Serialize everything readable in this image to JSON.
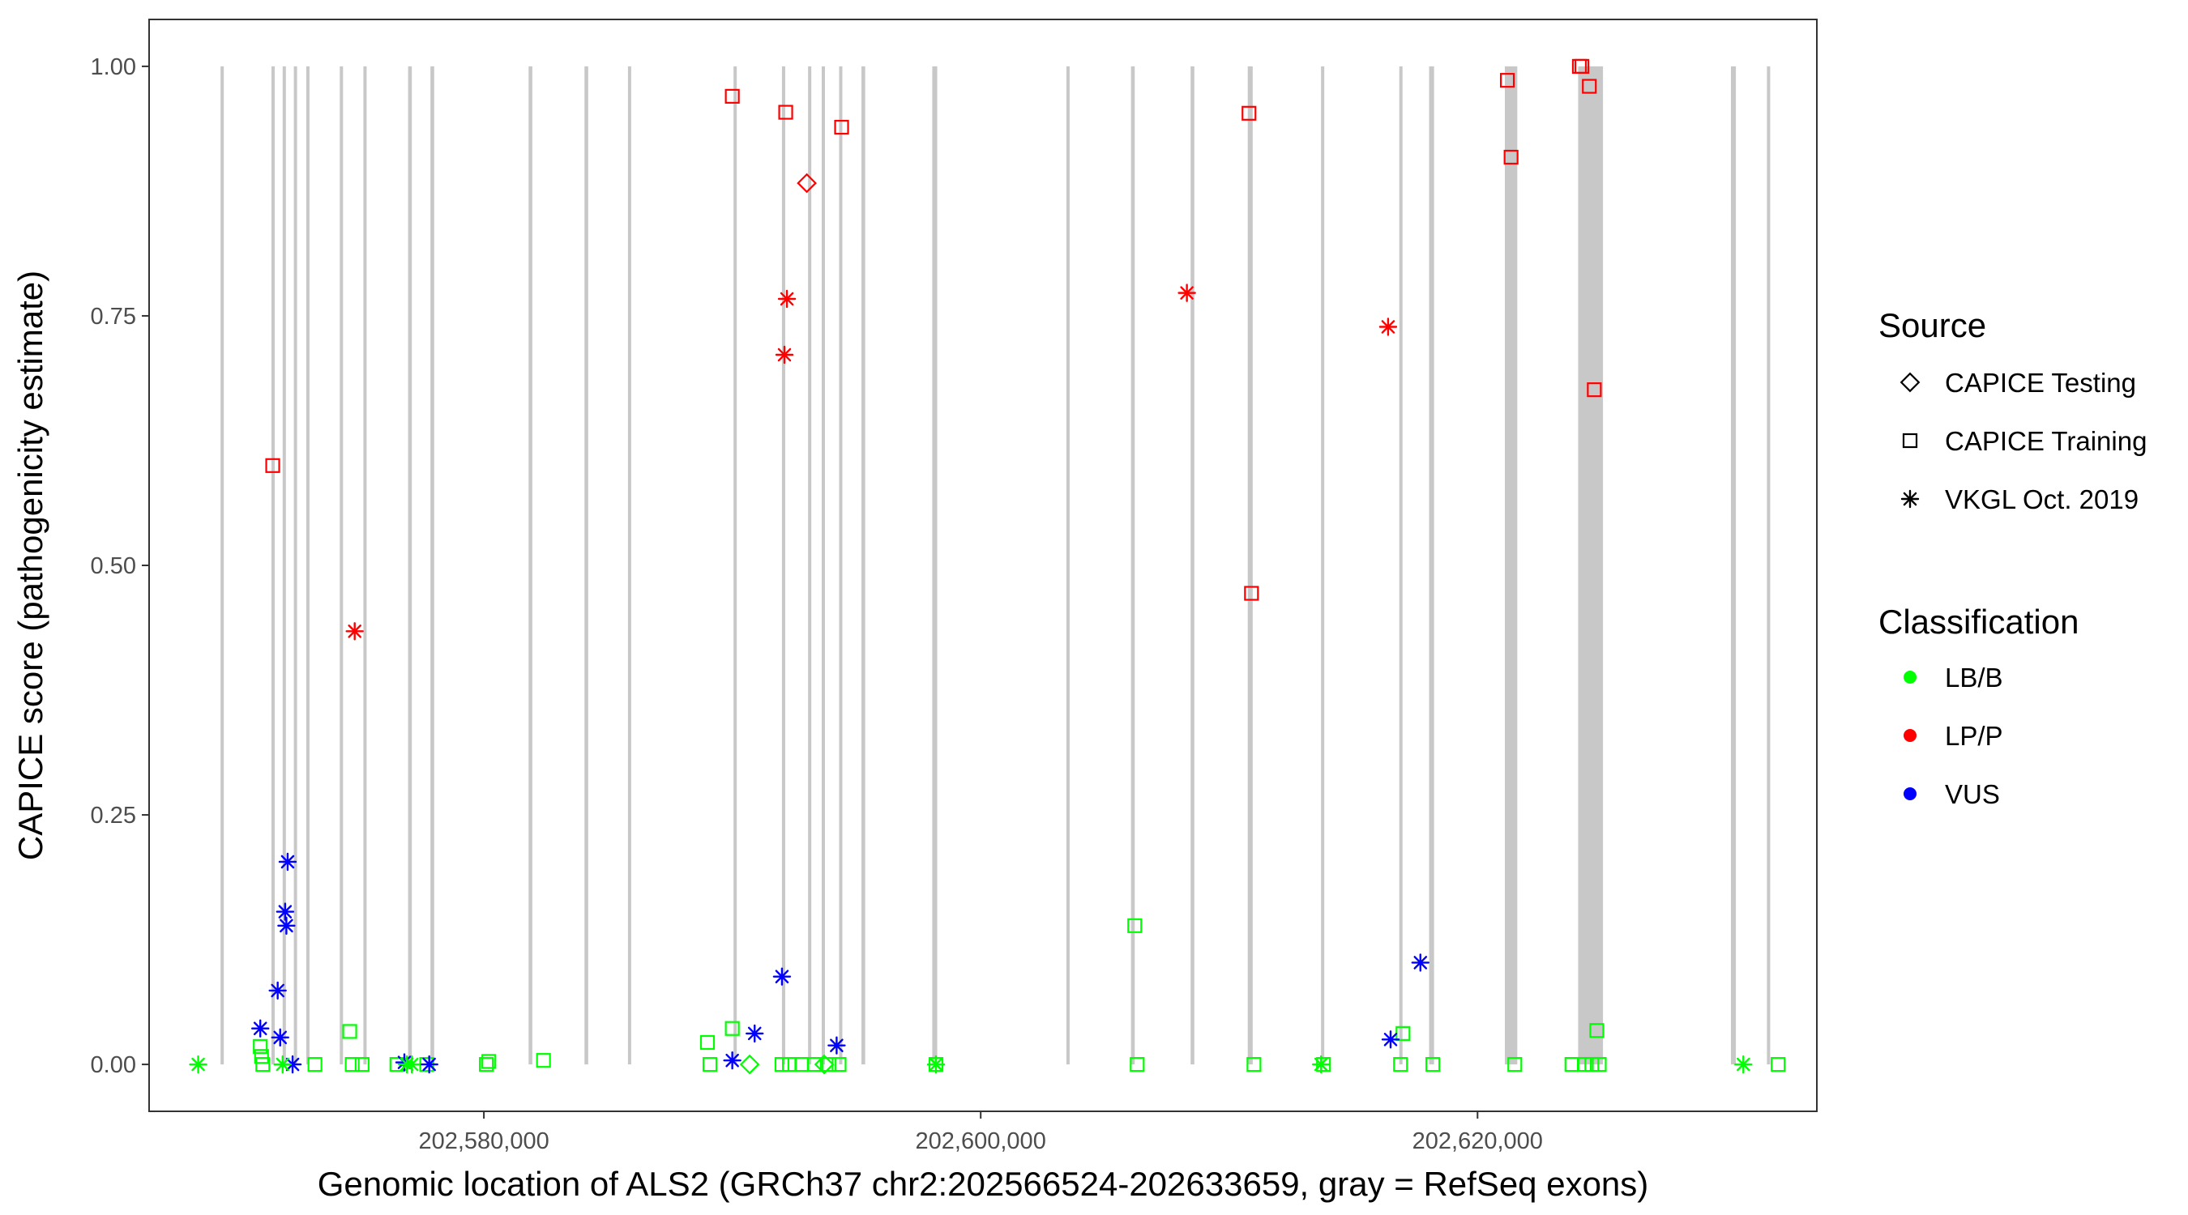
{
  "chart_data": {
    "type": "scatter",
    "xlabel": "Genomic location of ALS2 (GRCh37 chr2:202566524-202633659, gray = RefSeq exons)",
    "ylabel": "CAPICE score (pathogenicity estimate)",
    "xlim": [
      202566524,
      202633659
    ],
    "ylim": [
      -0.047,
      1.047
    ],
    "x_ticks": [
      202580000,
      202600000,
      202620000
    ],
    "x_tick_labels": [
      "202,580,000",
      "202,600,000",
      "202,620,000"
    ],
    "y_ticks": [
      0,
      0.25,
      0.5,
      0.75,
      1.0
    ],
    "y_tick_labels": [
      "0.00",
      "0.25",
      "0.50",
      "0.75",
      "1.00"
    ],
    "grid": false,
    "legend_position": "right",
    "legends": [
      {
        "title": "Source",
        "entries": [
          {
            "label": "CAPICE Testing",
            "shape": "diamond"
          },
          {
            "label": "CAPICE Training",
            "shape": "square"
          },
          {
            "label": "VKGL Oct. 2019",
            "shape": "asterisk"
          }
        ]
      },
      {
        "title": "Classification",
        "entries": [
          {
            "label": "LB/B",
            "color": "#00ff00"
          },
          {
            "label": "LP/P",
            "color": "#ff0000"
          },
          {
            "label": "VUS",
            "color": "#0000ff"
          }
        ]
      }
    ],
    "colors": {
      "LB/B": "#00ff00",
      "LP/P": "#ff0000",
      "VUS": "#0000ff",
      "exon": "#c8c8c8"
    },
    "exons": [
      [
        202569400,
        202569460
      ],
      [
        202571450,
        202571550
      ],
      [
        202571900,
        202572000
      ],
      [
        202572350,
        202572450
      ],
      [
        202572850,
        202572950
      ],
      [
        202574200,
        202574320
      ],
      [
        202575150,
        202575250
      ],
      [
        202576950,
        202577100
      ],
      [
        202577850,
        202578000
      ],
      [
        202581800,
        202581950
      ],
      [
        202584050,
        202584200
      ],
      [
        202585800,
        202585900
      ],
      [
        202590050,
        202590150
      ],
      [
        202592000,
        202592100
      ],
      [
        202593050,
        202593150
      ],
      [
        202593600,
        202593700
      ],
      [
        202594300,
        202594400
      ],
      [
        202595200,
        202595350
      ],
      [
        202598050,
        202598250
      ],
      [
        202603450,
        202603550
      ],
      [
        202606050,
        202606200
      ],
      [
        202608450,
        202608600
      ],
      [
        202610750,
        202610950
      ],
      [
        202613700,
        202613800
      ],
      [
        202616850,
        202616950
      ],
      [
        202618050,
        202618250
      ],
      [
        202621100,
        202621600
      ],
      [
        202624050,
        202625050
      ],
      [
        202630200,
        202630400
      ],
      [
        202631650,
        202631750
      ]
    ],
    "series": [
      {
        "source": "CAPICE Testing",
        "classification": "LP/P",
        "points": [
          [
            202593000,
            0.883
          ]
        ]
      },
      {
        "source": "CAPICE Testing",
        "classification": "LB/B",
        "points": [
          [
            202590700,
            0.0
          ],
          [
            202593700,
            0.0
          ]
        ]
      },
      {
        "source": "CAPICE Training",
        "classification": "LP/P",
        "points": [
          [
            202571500,
            0.6
          ],
          [
            202590000,
            0.97
          ],
          [
            202592150,
            0.954
          ],
          [
            202594400,
            0.939
          ],
          [
            202610800,
            0.953
          ],
          [
            202610900,
            0.472
          ],
          [
            202621200,
            0.986
          ],
          [
            202621350,
            0.909
          ],
          [
            202624100,
            1.0
          ],
          [
            202624200,
            1.0
          ],
          [
            202624500,
            0.98
          ],
          [
            202624700,
            0.676
          ]
        ]
      },
      {
        "source": "CAPICE Training",
        "classification": "LB/B",
        "points": [
          [
            202571000,
            0.018
          ],
          [
            202571050,
            0.008
          ],
          [
            202571100,
            0.0
          ],
          [
            202573200,
            0.0
          ],
          [
            202574600,
            0.033
          ],
          [
            202574700,
            0.0
          ],
          [
            202575100,
            0.0
          ],
          [
            202576500,
            0.0
          ],
          [
            202577700,
            0.0
          ],
          [
            202580100,
            0.0
          ],
          [
            202580200,
            0.003
          ],
          [
            202582400,
            0.004
          ],
          [
            202589000,
            0.022
          ],
          [
            202589100,
            0.0
          ],
          [
            202590000,
            0.036
          ],
          [
            202592000,
            0.0
          ],
          [
            202592300,
            0.0
          ],
          [
            202592800,
            0.0
          ],
          [
            202593300,
            0.0
          ],
          [
            202593900,
            0.0
          ],
          [
            202594300,
            0.0
          ],
          [
            202598200,
            0.0
          ],
          [
            202606200,
            0.139
          ],
          [
            202606300,
            0.0
          ],
          [
            202611000,
            0.0
          ],
          [
            202613800,
            0.0
          ],
          [
            202616900,
            0.0
          ],
          [
            202617000,
            0.031
          ],
          [
            202618200,
            0.0
          ],
          [
            202621500,
            0.0
          ],
          [
            202623800,
            0.0
          ],
          [
            202624300,
            0.0
          ],
          [
            202624600,
            0.0
          ],
          [
            202624800,
            0.034
          ],
          [
            202624900,
            0.0
          ],
          [
            202632100,
            0.0
          ]
        ]
      },
      {
        "source": "VKGL Oct. 2019",
        "classification": "LP/P",
        "points": [
          [
            202574800,
            0.434
          ],
          [
            202592100,
            0.711
          ],
          [
            202592200,
            0.767
          ],
          [
            202608300,
            0.773
          ],
          [
            202616400,
            0.739
          ]
        ]
      },
      {
        "source": "VKGL Oct. 2019",
        "classification": "VUS",
        "points": [
          [
            202571000,
            0.036
          ],
          [
            202571700,
            0.074
          ],
          [
            202571800,
            0.027
          ],
          [
            202572000,
            0.153
          ],
          [
            202572050,
            0.139
          ],
          [
            202572100,
            0.203
          ],
          [
            202572300,
            0.0
          ],
          [
            202576800,
            0.002
          ],
          [
            202577800,
            0.0
          ],
          [
            202590000,
            0.004
          ],
          [
            202590900,
            0.031
          ],
          [
            202592000,
            0.088
          ],
          [
            202594200,
            0.019
          ],
          [
            202616500,
            0.025
          ],
          [
            202617700,
            0.102
          ]
        ]
      },
      {
        "source": "VKGL Oct. 2019",
        "classification": "LB/B",
        "points": [
          [
            202568500,
            0.0
          ],
          [
            202571900,
            0.0
          ],
          [
            202576900,
            0.0
          ],
          [
            202577100,
            0.0
          ],
          [
            202598200,
            0.0
          ],
          [
            202613700,
            0.0
          ],
          [
            202630700,
            0.0
          ]
        ]
      }
    ]
  }
}
